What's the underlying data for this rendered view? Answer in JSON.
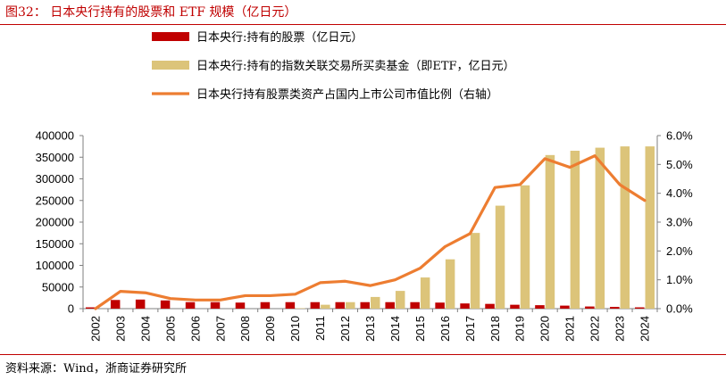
{
  "figure": {
    "title": "图32：  日本央行持有的股票和 ETF 规模（亿日元）",
    "source": "资料来源：Wind，浙商证券研究所"
  },
  "colors": {
    "accent": "#c00000",
    "series_stock": "#c00000",
    "series_etf": "#dcc47a",
    "series_ratio": "#ed7d31",
    "axis": "#7f7f7f"
  },
  "chart_data": {
    "type": "bar",
    "categories": [
      "2002",
      "2003",
      "2004",
      "2005",
      "2006",
      "2007",
      "2008",
      "2009",
      "2010",
      "2011",
      "2012",
      "2013",
      "2014",
      "2015",
      "2016",
      "2017",
      "2018",
      "2019",
      "2020",
      "2021",
      "2022",
      "2023",
      "2024"
    ],
    "series": [
      {
        "name": "日本央行:持有的股票（亿日元）",
        "type": "bar",
        "axis": "left",
        "values": [
          3000,
          20000,
          21000,
          19000,
          15000,
          15000,
          14000,
          15000,
          15000,
          15000,
          15000,
          15000,
          15000,
          15000,
          14000,
          12000,
          11000,
          9000,
          8000,
          7000,
          5000,
          4000,
          3000
        ]
      },
      {
        "name": "日本央行:持有的指数关联交易所买卖基金（即ETF，亿日元）",
        "type": "bar",
        "axis": "left",
        "values": [
          0,
          0,
          0,
          0,
          0,
          0,
          0,
          0,
          1000,
          9000,
          15000,
          27000,
          41000,
          72000,
          114000,
          175000,
          238000,
          285000,
          355000,
          365000,
          372000,
          375000,
          375000
        ]
      },
      {
        "name": "日本央行持有股票类资产占国内上市公司市值比例（右轴）",
        "type": "line",
        "axis": "right",
        "values": [
          0.0,
          0.6,
          0.55,
          0.35,
          0.3,
          0.3,
          0.45,
          0.45,
          0.5,
          0.9,
          0.95,
          0.8,
          1.0,
          1.4,
          2.15,
          2.6,
          4.2,
          4.3,
          5.2,
          4.9,
          5.3,
          4.3,
          3.75
        ]
      }
    ],
    "y_left": {
      "ylim": [
        0,
        400000
      ],
      "ticks": [
        "0",
        "50000",
        "100000",
        "150000",
        "200000",
        "250000",
        "300000",
        "350000",
        "400000"
      ]
    },
    "y_right": {
      "ylim": [
        0,
        6.0
      ],
      "ticks": [
        "0.0%",
        "1.0%",
        "2.0%",
        "3.0%",
        "4.0%",
        "5.0%",
        "6.0%"
      ]
    },
    "grid": false,
    "legend_position": "top-center"
  }
}
